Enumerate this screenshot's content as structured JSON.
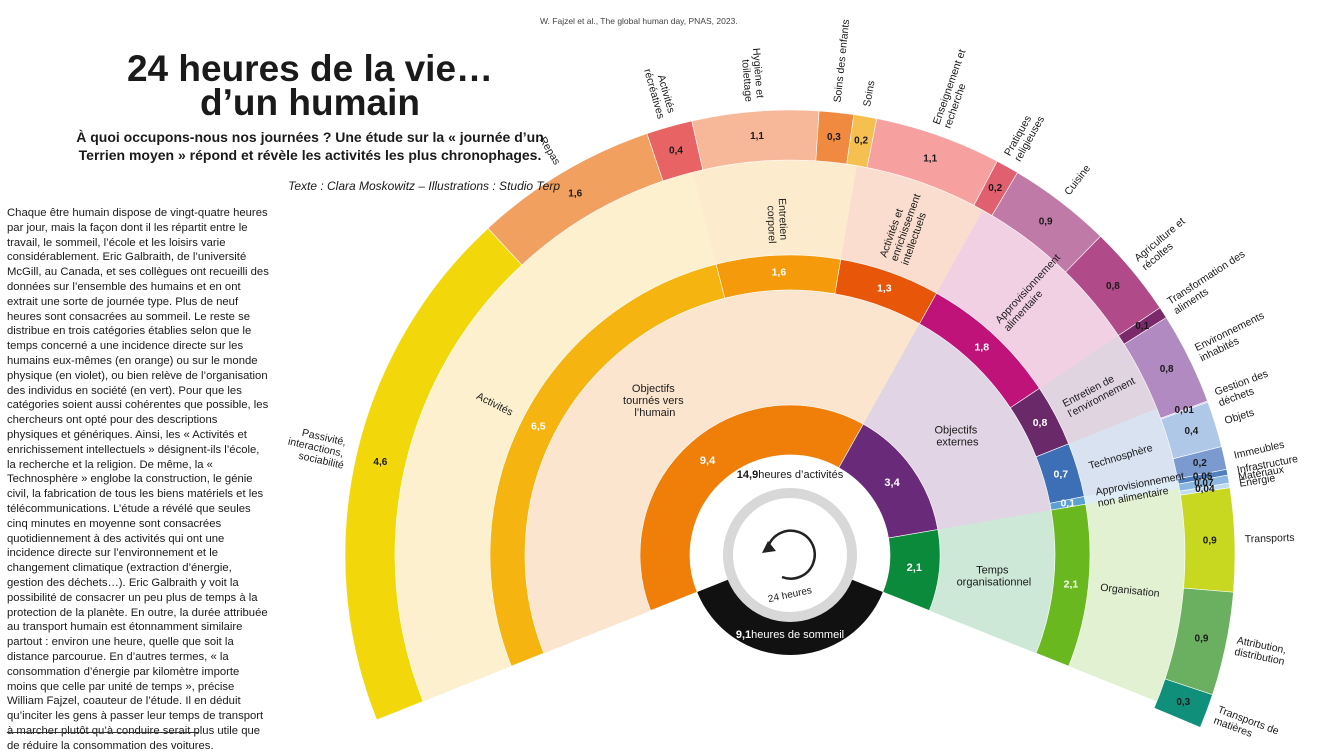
{
  "chart_data": {
    "type": "sunburst",
    "title": [
      "24 heures de la vie…",
      "d’un humain"
    ],
    "subtitle": [
      "À quoi occupons-nous nos journées ? Une étude sur la « journée d’un",
      "Terrien moyen » répond et révèle les activités les plus chronophages."
    ],
    "credit": "Texte : Clara Moskowitz – Illustrations : Studio Terp",
    "source": "W. Fajzel et al., The global human day, PNAS, 2023.",
    "awake": {
      "value": 14.9,
      "value_label": "14,9",
      "text": "heures d’activités"
    },
    "sleep": {
      "value": 9.1,
      "value_label": "9,1",
      "text": "heures de sommeil",
      "color": "#111111"
    },
    "clock_label": "24 heures",
    "groups": [
      {
        "name": "Objectifs tournés vers l’humain",
        "value": 9.4,
        "value_label": "9,4",
        "color": "#f07f0a",
        "children": [
          {
            "name": "Activités",
            "value": 6.5,
            "value_label": "6,5",
            "color": "#f5b40f",
            "children": [
              {
                "name": "Passivité, interactions, sociabilité",
                "value": 4.6,
                "value_label": "4,6",
                "color": "#f2d80a"
              },
              {
                "name": "Repas",
                "value": 1.6,
                "value_label": "1,6",
                "color": "#f2a060"
              },
              {
                "name": "Activités récréatives",
                "value": 0.4,
                "value_label": "0,4",
                "color": "#e86464"
              }
            ]
          },
          {
            "name": "Entretien corporel",
            "value": 1.6,
            "value_label": "1,6",
            "color": "#f59a0a",
            "children": [
              {
                "name": "Hygiène et toilettage",
                "value": 1.1,
                "value_label": "1,1",
                "color": "#f7b89a"
              },
              {
                "name": "Soins des enfants",
                "value": 0.3,
                "value_label": "0,3",
                "color": "#f08a40"
              },
              {
                "name": "Soins",
                "value": 0.2,
                "value_label": "0,2",
                "color": "#f5c050"
              }
            ]
          },
          {
            "name": "Activités et enrichissement intellectuels",
            "value": 1.3,
            "value_label": "1,3",
            "color": "#e8560a",
            "children": [
              {
                "name": "Enseignement et recherche",
                "value": 1.1,
                "value_label": "1,1",
                "color": "#f7a0a0"
              },
              {
                "name": "Pratiques religieuses",
                "value": 0.2,
                "value_label": "0,2",
                "color": "#e06070"
              }
            ]
          }
        ]
      },
      {
        "name": "Objectifs externes",
        "value": 3.4,
        "value_label": "3,4",
        "color": "#6a2a7a",
        "children": [
          {
            "name": "Approvisionnement alimentaire",
            "value": 1.8,
            "value_label": "1,8",
            "color": "#c0137a",
            "children": [
              {
                "name": "Cuisine",
                "value": 0.9,
                "value_label": "0,9",
                "color": "#c07aa8"
              },
              {
                "name": "Agriculture et récoltes",
                "value": 0.8,
                "value_label": "0,8",
                "color": "#b04a88"
              },
              {
                "name": "Transformation des aliments",
                "value": 0.1,
                "value_label": "0,1",
                "color": "#7a2a6a"
              }
            ]
          },
          {
            "name": "Entretien de l’environnement",
            "value": 0.8,
            "value_label": "0,8",
            "color": "#6a2a6a",
            "children": [
              {
                "name": "Environnements inhabités",
                "value": 0.8,
                "value_label": "0,8",
                "color": "#b08ac0"
              },
              {
                "name": "Gestion des déchets",
                "value": 0.01,
                "value_label": "0,01",
                "color": "#c8b0d8"
              }
            ]
          },
          {
            "name": "Technosphère",
            "value": 0.7,
            "value_label": "0,7",
            "color": "#3c6fb5",
            "children": [
              {
                "name": "Objets",
                "value": 0.4,
                "value_label": "0,4",
                "color": "#b0c8e8"
              },
              {
                "name": "Immeubles",
                "value": 0.2,
                "value_label": "0,2",
                "color": "#7a9ad0"
              },
              {
                "name": "Infrastructure",
                "value": 0.05,
                "value_label": "0,05",
                "color": "#5080c0"
              }
            ]
          },
          {
            "name": "Approvisionnement non alimentaire",
            "value": 0.1,
            "value_label": "0,1",
            "color": "#5aa0d0",
            "children": [
              {
                "name": "Matériaux",
                "value": 0.07,
                "value_label": "0,07",
                "color": "#8ab8e0"
              },
              {
                "name": "Énergie",
                "value": 0.04,
                "value_label": "0,04",
                "color": "#c0dcf0"
              }
            ]
          }
        ]
      },
      {
        "name": "Temps organisationnel",
        "value": 2.1,
        "value_label": "2,1",
        "color": "#0a8a3a",
        "children": [
          {
            "name": "Organisation",
            "value": 2.1,
            "value_label": "2,1",
            "color": "#6ab820",
            "children": [
              {
                "name": "Transports",
                "value": 0.9,
                "value_label": "0,9",
                "color": "#c8d820"
              },
              {
                "name": "Attribution, distribution",
                "value": 0.9,
                "value_label": "0,9",
                "color": "#6ab060"
              },
              {
                "name": "Transports de matières",
                "value": 0.3,
                "value_label": "0,3",
                "color": "#10907a"
              }
            ]
          }
        ]
      }
    ]
  },
  "article": "Chaque être humain dispose de vingt-quatre heures par jour, mais la façon dont il les répartit entre le travail, le sommeil, l’école et les loisirs varie considérablement. Eric Galbraith, de l’université McGill, au Canada, et ses collègues ont recueilli des données sur l’ensemble des humains et en ont extrait une sorte de journée type. Plus de neuf heures sont consacrées au sommeil. Le reste se distribue en trois catégories établies selon que le temps concerné a une incidence directe sur les humains eux-mêmes (en orange) ou sur le monde physique (en violet), ou bien relève de l’organisation des individus en société (en vert). Pour que les catégories soient aussi cohérentes que possible, les chercheurs ont opté pour des descriptions physiques et génériques. Ainsi, les « Activités et enrichissement intellectuels » désignent-ils l’école, la recherche et la religion. De même, la « Technosphère » englobe la construction, le génie civil, la fabrication de tous les biens matériels et les télécommunications. L’étude a révélé que seules cinq minutes en moyenne sont consacrées quotidiennement à des activités qui ont une incidence directe sur l’environnement et le changement climatique (extraction d’énergie, gestion des déchets…). Eric Galbraith y voit la possibilité de consacrer un peu plus de temps à la protection de la planète. En outre, la durée attribuée au transport humain est étonnamment similaire partout : environ une heure, quelle que soit la distance parcourue. En d’autres termes, « la consommation d’énergie par kilomètre importe moins que celle par unité de temps », précise William Fajzel, coauteur de l’étude. Il en déduit qu’inciter les gens à passer leur temps de transport à marcher plutôt qu’à conduire serait plus utile que de réduire la consommation des voitures."
}
